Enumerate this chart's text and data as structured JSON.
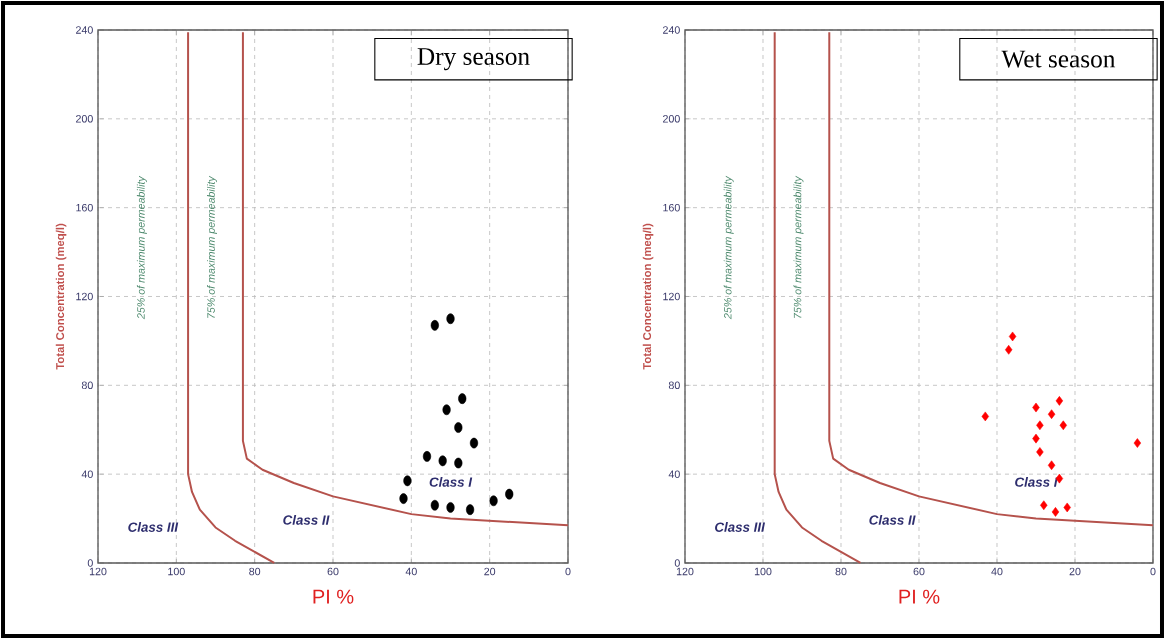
{
  "chart_data": [
    {
      "type": "scatter",
      "title": "Dry season",
      "xlabel": "PI %",
      "ylabel": "Total Concentration (meq/l)",
      "xlim": [
        120,
        0
      ],
      "ylim": [
        0,
        240
      ],
      "xticks": [
        120,
        100,
        80,
        60,
        40,
        20,
        0
      ],
      "yticks": [
        0,
        40,
        80,
        120,
        160,
        200,
        240
      ],
      "grid": true,
      "annotations": [
        "25% of maximum permeability",
        "75% of maximum permeability",
        "Class I",
        "Class II",
        "Class III"
      ],
      "series": [
        {
          "type": "line",
          "color": "#b5524c",
          "marker": "none",
          "x": [
            97,
            97,
            96,
            94,
            90,
            85,
            80,
            75
          ],
          "values": [
            239,
            40,
            32,
            24,
            16,
            10,
            5,
            0
          ]
        },
        {
          "type": "line",
          "color": "#b5524c",
          "marker": "none",
          "x": [
            83,
            83,
            82,
            78,
            70,
            60,
            50,
            40,
            30,
            20,
            10,
            0
          ],
          "values": [
            239,
            55,
            47,
            42,
            36,
            30,
            26,
            22,
            20,
            19,
            18,
            17
          ]
        },
        {
          "color": "#000000",
          "marker": "circle",
          "x": [
            34,
            30,
            27,
            31,
            28,
            24,
            36,
            32,
            28,
            41,
            42,
            34,
            30,
            25,
            19,
            15
          ],
          "values": [
            107,
            110,
            74,
            69,
            61,
            54,
            48,
            46,
            45,
            37,
            29,
            26,
            25,
            24,
            28,
            31
          ]
        }
      ]
    },
    {
      "type": "scatter",
      "title": "Wet season",
      "xlabel": "PI %",
      "ylabel": "Total Concentration (meq/l)",
      "xlim": [
        120,
        0
      ],
      "ylim": [
        0,
        240
      ],
      "xticks": [
        120,
        100,
        80,
        60,
        40,
        20,
        0
      ],
      "yticks": [
        0,
        40,
        80,
        120,
        160,
        200,
        240
      ],
      "grid": true,
      "annotations": [
        "25% of maximum permeability",
        "75% of maximum permeability",
        "Class I",
        "Class II",
        "Class III"
      ],
      "series": [
        {
          "type": "line",
          "color": "#b5524c",
          "marker": "none",
          "x": [
            97,
            97,
            96,
            94,
            90,
            85,
            80,
            75
          ],
          "values": [
            239,
            40,
            32,
            24,
            16,
            10,
            5,
            0
          ]
        },
        {
          "type": "line",
          "color": "#b5524c",
          "marker": "none",
          "x": [
            83,
            83,
            82,
            78,
            70,
            60,
            50,
            40,
            30,
            20,
            10,
            0
          ],
          "values": [
            239,
            55,
            47,
            42,
            36,
            30,
            26,
            22,
            20,
            19,
            18,
            17
          ]
        },
        {
          "color": "#ff0000",
          "marker": "diamond",
          "x": [
            36,
            37,
            43,
            30,
            24,
            26,
            29,
            23,
            30,
            29,
            26,
            24,
            4,
            28,
            25,
            22
          ],
          "values": [
            102,
            96,
            66,
            70,
            73,
            67,
            62,
            62,
            56,
            50,
            44,
            38,
            54,
            26,
            23,
            25
          ]
        }
      ]
    }
  ]
}
